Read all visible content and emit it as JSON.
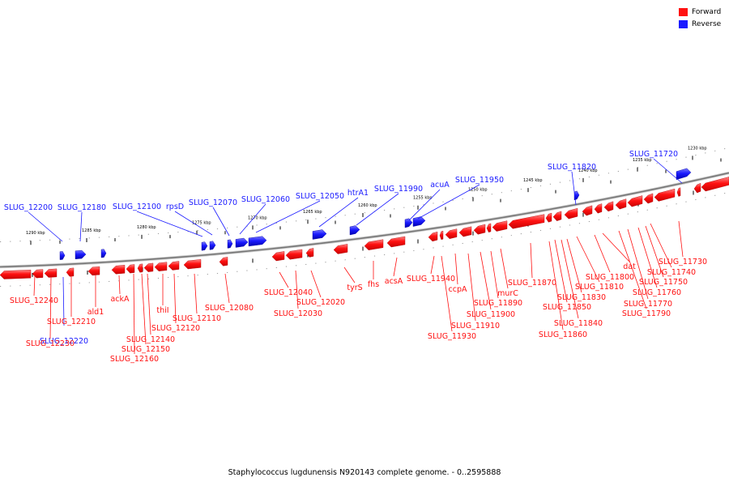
{
  "colors": {
    "forward": "#ff1111",
    "forward_light": "#ff8a8a",
    "reverse": "#1a1aff",
    "reverse_light": "#7a7aff",
    "axis": "#777777",
    "text": "#000000"
  },
  "legend": [
    {
      "label": "Forward",
      "color": "#ff1111"
    },
    {
      "label": "Reverse",
      "color": "#1a1aff"
    }
  ],
  "caption": "Staphylococcus lugdunensis N920143 complete genome. - 0..2595888",
  "ticks": [
    "1290 kbp",
    "1285 kbp",
    "1280 kbp",
    "1275 kbp",
    "1270 kbp",
    "1265 kbp",
    "1260 kbp",
    "1255 kbp",
    "1250 kbp",
    "1245 kbp",
    "1240 kbp",
    "1235 kbp",
    "1230 kbp"
  ],
  "reverse_labels": [
    "SLUG_12200",
    "SLUG_12180",
    "SLUG_12100",
    "rpsD",
    "SLUG_12070",
    "SLUG_12060",
    "SLUG_12050",
    "htrA1",
    "SLUG_11990",
    "acuA",
    "SLUG_11950",
    "SLUG_11820",
    "SLUG_11720",
    "SLUG_12220"
  ],
  "forward_labels": [
    "SLUG_12240",
    "SLUG_12210",
    "SLUG_12230",
    "ald1",
    "ackA",
    "SLUG_12140",
    "SLUG_12150",
    "SLUG_12160",
    "thiI",
    "SLUG_12120",
    "SLUG_12110",
    "SLUG_12080",
    "SLUG_12040",
    "SLUG_12020",
    "SLUG_12030",
    "tyrS",
    "fhs",
    "acsA",
    "SLUG_11940",
    "SLUG_11930",
    "SLUG_11910",
    "ccpA",
    "SLUG_11900",
    "SLUG_11890",
    "murC",
    "SLUG_11870",
    "SLUG_11860",
    "SLUG_11850",
    "SLUG_11840",
    "SLUG_11830",
    "SLUG_11810",
    "SLUG_11800",
    "dat",
    "SLUG_11790",
    "SLUG_11770",
    "SLUG_11760",
    "SLUG_11750",
    "SLUG_11740",
    "SLUG_11730"
  ]
}
